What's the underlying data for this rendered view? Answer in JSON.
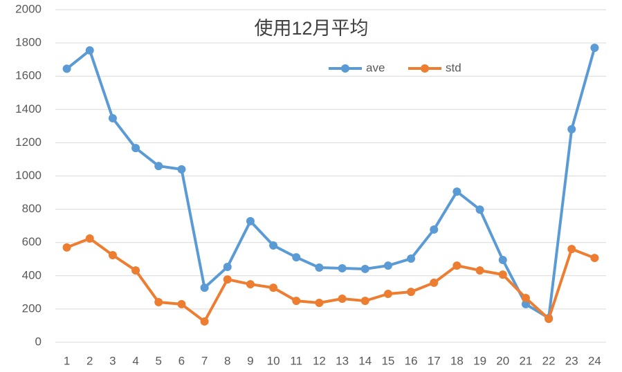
{
  "chart_data": {
    "type": "line",
    "title": "使用12月平均",
    "categories": [
      "1",
      "2",
      "3",
      "4",
      "5",
      "6",
      "7",
      "8",
      "9",
      "10",
      "11",
      "12",
      "13",
      "14",
      "15",
      "16",
      "17",
      "18",
      "19",
      "20",
      "21",
      "22",
      "23",
      "24"
    ],
    "series": [
      {
        "name": "ave",
        "color": "#5b9bd5",
        "values": [
          1645,
          1755,
          1347,
          1168,
          1060,
          1040,
          328,
          453,
          728,
          582,
          511,
          449,
          445,
          441,
          461,
          503,
          678,
          906,
          798,
          495,
          229,
          146,
          1281,
          1771
        ]
      },
      {
        "name": "std",
        "color": "#ed7d31",
        "values": [
          570,
          624,
          524,
          432,
          241,
          229,
          125,
          378,
          349,
          328,
          249,
          237,
          262,
          249,
          291,
          303,
          358,
          461,
          432,
          407,
          266,
          141,
          561,
          507
        ]
      }
    ],
    "ylim": [
      0,
      2000
    ],
    "yticks": [
      0,
      200,
      400,
      600,
      800,
      1000,
      1200,
      1400,
      1600,
      1800,
      2000
    ],
    "grid": true
  }
}
